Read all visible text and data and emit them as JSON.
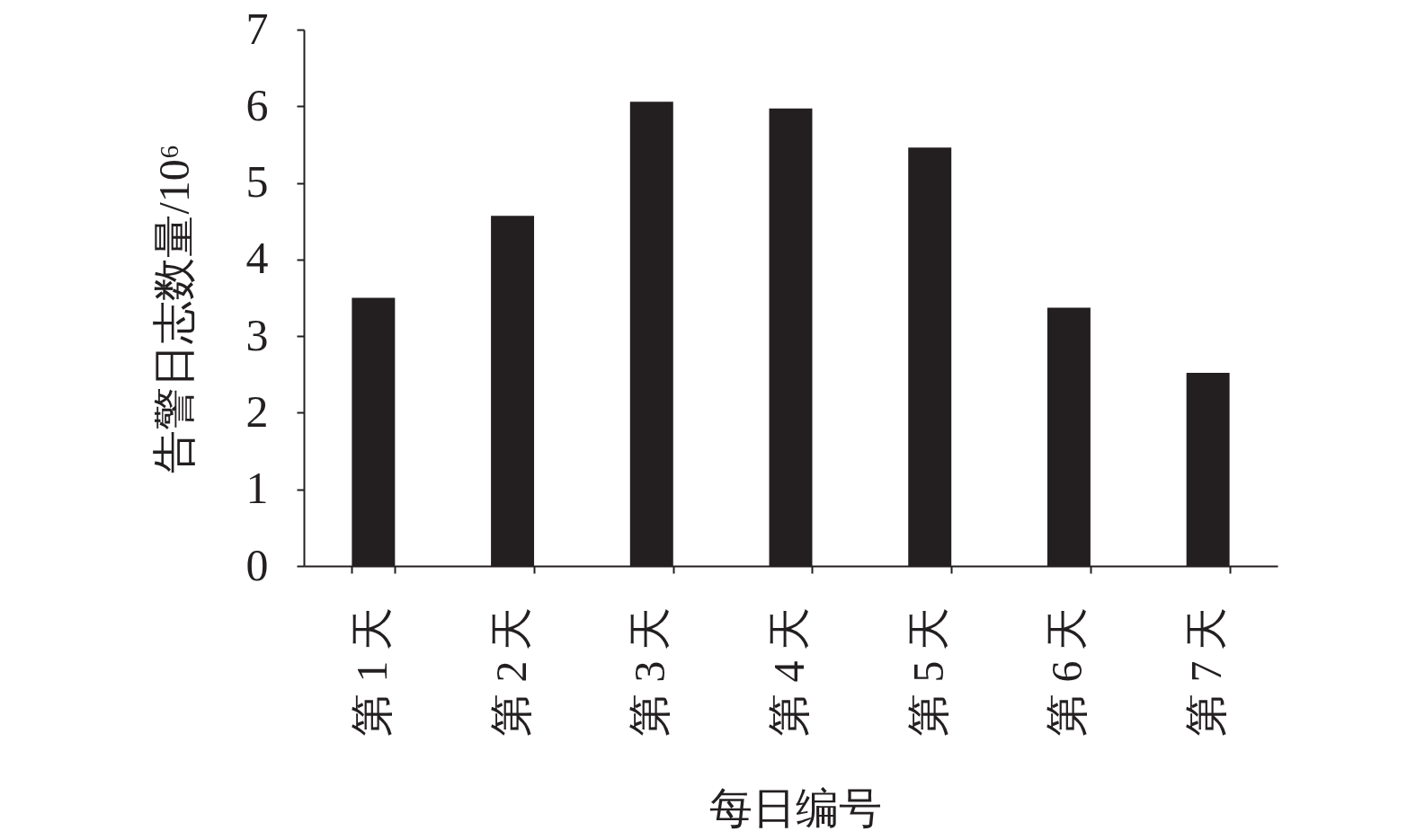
{
  "chart_data": {
    "type": "bar",
    "xlabel": "每日编号",
    "ylabel": "告警日志数量/10⁶",
    "categories": [
      "第 1 天",
      "第 2 天",
      "第 3 天",
      "第 4 天",
      "第 5 天",
      "第 6 天",
      "第 7 天"
    ],
    "values": [
      3.5,
      4.57,
      6.06,
      5.97,
      5.46,
      3.37,
      2.52
    ],
    "color": "#231f20",
    "ylim": [
      0,
      7
    ],
    "yticks": [
      0,
      1,
      2,
      3,
      4,
      5,
      6,
      7
    ]
  }
}
